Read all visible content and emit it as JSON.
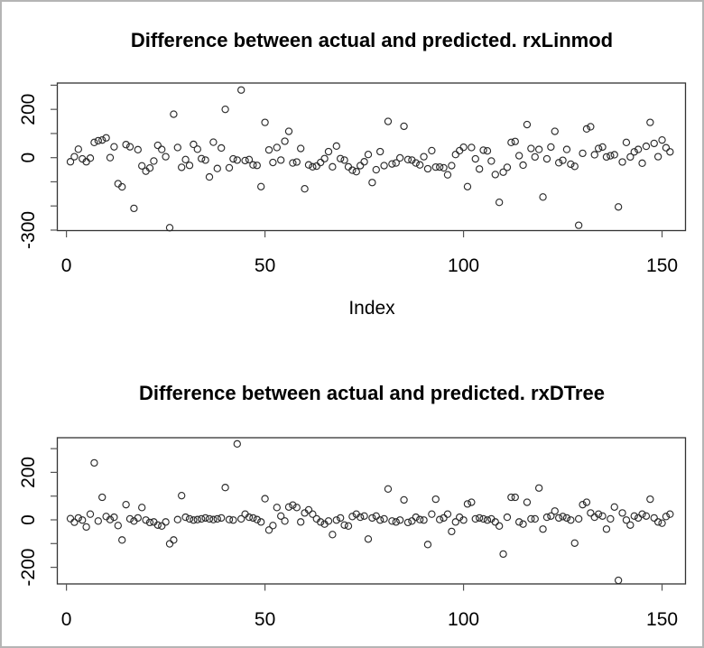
{
  "window": {
    "background": "#ffffff",
    "border_color": "#b5b5b5"
  },
  "styles": {
    "point_color": "#2b2b2b",
    "axis_color": "#333333",
    "tick_color": "#555555",
    "text_color": "#000000"
  },
  "chart_data": [
    {
      "type": "scatter",
      "title": "Difference between actual and predicted. rxLinmod",
      "xlabel": "Index",
      "ylabel": "",
      "marker": "open-circle",
      "legend": "none",
      "grid": false,
      "x_ticks": [
        0,
        50,
        100,
        150
      ],
      "y_ticks": [
        300,
        200,
        100,
        0,
        -100,
        -200,
        -300
      ],
      "y_tick_labels_shown": [
        200,
        0,
        -300
      ],
      "xlim": [
        -2.3,
        155.9
      ],
      "ylim": [
        -302,
        309
      ],
      "x_start_index": 1,
      "values": [
        -17,
        4,
        35,
        -5,
        -17,
        -2,
        63,
        70,
        73,
        82,
        0,
        45,
        -108,
        -121,
        54,
        45,
        -210,
        33,
        -34,
        -56,
        -43,
        -14,
        51,
        34,
        4,
        -290,
        180,
        42,
        -40,
        -8,
        -32,
        55,
        35,
        -4,
        -10,
        -80,
        64,
        -45,
        40,
        200,
        -42,
        -5,
        -10,
        280,
        -12,
        -8,
        -30,
        -32,
        -120,
        146,
        32,
        -20,
        42,
        -10,
        68,
        109,
        -22,
        -18,
        38,
        -129,
        -30,
        -38,
        -35,
        -20,
        -4,
        25,
        -38,
        48,
        -4,
        -10,
        -38,
        -52,
        -58,
        -33,
        -17,
        13,
        -103,
        -50,
        25,
        -33,
        150,
        -26,
        -22,
        -1,
        130,
        -8,
        -10,
        -22,
        -30,
        4,
        -46,
        29,
        -39,
        -39,
        -42,
        -71,
        -33,
        13,
        29,
        43,
        -120,
        42,
        -5,
        -47,
        31,
        28,
        -14,
        -70,
        -185,
        -60,
        -40,
        63,
        67,
        8,
        -31,
        137,
        38,
        3,
        34,
        -163,
        -5,
        44,
        109,
        -21,
        -11,
        34,
        -27,
        -36,
        -280,
        18,
        119,
        128,
        12,
        38,
        44,
        3,
        8,
        12,
        -204,
        -18,
        63,
        3,
        24,
        34,
        -23,
        47,
        146,
        59,
        4,
        73,
        41,
        24
      ]
    },
    {
      "type": "scatter",
      "title": "Difference between actual and predicted. rxDTree",
      "xlabel": "",
      "ylabel": "",
      "marker": "open-circle",
      "legend": "none",
      "grid": false,
      "x_ticks": [
        0,
        50,
        100,
        150
      ],
      "y_ticks": [
        300,
        200,
        100,
        0,
        -100,
        -200
      ],
      "y_tick_labels_shown": [
        200,
        0,
        -200
      ],
      "xlim": [
        -2.3,
        155.9
      ],
      "ylim": [
        -270,
        346
      ],
      "x_start_index": 1,
      "values": [
        5,
        -10,
        8,
        -1,
        -30,
        24,
        240,
        -5,
        95,
        14,
        1,
        11,
        -24,
        -85,
        64,
        4,
        -5,
        8,
        52,
        -1,
        -11,
        -9,
        -22,
        -26,
        -9,
        -101,
        -85,
        1,
        102,
        11,
        4,
        -1,
        1,
        4,
        8,
        4,
        1,
        4,
        8,
        136,
        1,
        -1,
        320,
        4,
        24,
        11,
        8,
        1,
        -9,
        89,
        -43,
        -24,
        52,
        16,
        -5,
        54,
        62,
        52,
        -9,
        29,
        42,
        24,
        4,
        -9,
        -18,
        -5,
        -62,
        -1,
        8,
        -22,
        -26,
        14,
        24,
        11,
        16,
        -81,
        8,
        16,
        -1,
        4,
        130,
        -5,
        -9,
        -1,
        84,
        -11,
        -5,
        11,
        1,
        -1,
        -104,
        24,
        87,
        1,
        8,
        24,
        -49,
        -9,
        11,
        -1,
        67,
        74,
        4,
        8,
        4,
        -1,
        4,
        -9,
        -26,
        -144,
        11,
        95,
        95,
        -9,
        -18,
        74,
        4,
        4,
        134,
        -39,
        11,
        16,
        37,
        8,
        14,
        8,
        -1,
        -98,
        4,
        64,
        74,
        29,
        11,
        24,
        16,
        -39,
        4,
        54,
        -255,
        29,
        -1,
        -22,
        16,
        8,
        24,
        16,
        87,
        8,
        -9,
        -14,
        14,
        24
      ]
    }
  ]
}
